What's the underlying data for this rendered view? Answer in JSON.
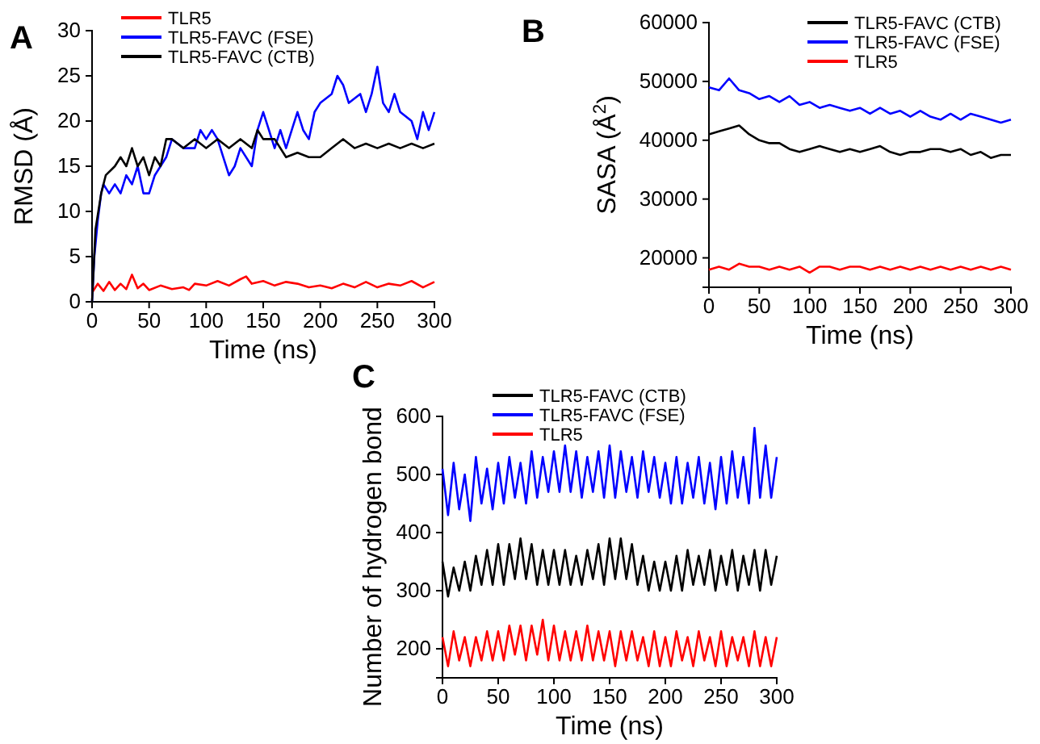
{
  "chart_data": [
    {
      "type": "line",
      "title": "A",
      "xlabel": "Time (ns)",
      "ylabel": "RMSD (Å)",
      "xlim": [
        0,
        300
      ],
      "xticks": [
        0,
        50,
        100,
        150,
        200,
        250,
        300
      ],
      "ylim": [
        0,
        30
      ],
      "yticks": [
        0,
        5,
        10,
        15,
        20,
        25,
        30
      ],
      "legend": "top",
      "grid": false,
      "series": [
        {
          "name": "TLR5",
          "color": "#ff0000",
          "x": [
            0,
            5,
            10,
            15,
            20,
            25,
            30,
            35,
            40,
            45,
            50,
            60,
            70,
            80,
            85,
            90,
            100,
            110,
            120,
            130,
            135,
            140,
            150,
            160,
            170,
            180,
            190,
            200,
            210,
            220,
            230,
            240,
            250,
            260,
            270,
            280,
            290,
            300
          ],
          "values": [
            1,
            2,
            1.2,
            2.2,
            1.3,
            2,
            1.4,
            3,
            1.5,
            2,
            1.3,
            1.8,
            1.4,
            1.6,
            1.3,
            2,
            1.8,
            2.3,
            1.8,
            2.5,
            2.8,
            2,
            2.3,
            1.8,
            2.2,
            2,
            1.6,
            1.8,
            1.5,
            2,
            1.6,
            2.2,
            1.6,
            2,
            1.8,
            2.3,
            1.6,
            2.2
          ]
        },
        {
          "name": "TLR5-FAVC (FSE)",
          "color": "#0000ff",
          "x": [
            0,
            2,
            5,
            8,
            10,
            15,
            20,
            25,
            30,
            35,
            40,
            45,
            50,
            55,
            60,
            65,
            70,
            80,
            90,
            95,
            100,
            105,
            110,
            115,
            120,
            125,
            130,
            140,
            145,
            150,
            155,
            160,
            165,
            170,
            175,
            180,
            185,
            190,
            195,
            200,
            210,
            215,
            220,
            225,
            235,
            240,
            245,
            250,
            255,
            260,
            265,
            270,
            280,
            285,
            290,
            295,
            300
          ],
          "values": [
            0,
            5,
            9,
            12,
            13,
            12,
            13,
            12,
            14,
            13,
            15,
            12,
            12,
            14,
            15,
            16,
            18,
            17,
            17,
            19,
            18,
            19,
            18,
            16,
            14,
            15,
            17,
            15,
            19,
            21,
            19,
            17,
            19,
            17,
            19,
            21,
            19,
            18,
            21,
            22,
            23,
            25,
            24,
            22,
            23,
            21,
            23,
            26,
            22,
            21,
            23,
            21,
            20,
            18,
            21,
            19,
            21
          ]
        },
        {
          "name": "TLR5-FAVC (CTB)",
          "color": "#000000",
          "x": [
            0,
            3,
            8,
            12,
            20,
            25,
            30,
            35,
            40,
            45,
            50,
            55,
            60,
            65,
            70,
            80,
            90,
            100,
            110,
            120,
            130,
            140,
            145,
            150,
            160,
            170,
            180,
            190,
            200,
            210,
            220,
            230,
            240,
            250,
            260,
            270,
            280,
            290,
            300
          ],
          "values": [
            0,
            8,
            12,
            14,
            15,
            16,
            15,
            17,
            15,
            16,
            14,
            16,
            15,
            18,
            18,
            17,
            18,
            17,
            18,
            17,
            18,
            17,
            19,
            18,
            18,
            16,
            16.5,
            16,
            16,
            17,
            18,
            17,
            17.5,
            17,
            17.5,
            17,
            17.5,
            17,
            17.5
          ]
        }
      ]
    },
    {
      "type": "line",
      "title": "B",
      "xlabel": "Time (ns)",
      "ylabel": "SASA (Å$^{2}$)",
      "xlim": [
        0,
        300
      ],
      "xticks": [
        0,
        50,
        100,
        150,
        200,
        250,
        300
      ],
      "ylim": [
        15000,
        60000
      ],
      "yticks": [
        20000,
        30000,
        40000,
        50000,
        60000
      ],
      "legend": "top right",
      "grid": false,
      "x": [
        0,
        10,
        20,
        30,
        40,
        50,
        60,
        70,
        80,
        90,
        100,
        110,
        120,
        130,
        140,
        150,
        160,
        170,
        180,
        190,
        200,
        210,
        220,
        230,
        240,
        250,
        260,
        270,
        280,
        290,
        300
      ],
      "series": [
        {
          "name": "TLR5-FAVC (CTB)",
          "color": "#000000",
          "values": [
            41000,
            41500,
            42000,
            42500,
            41000,
            40000,
            39500,
            39500,
            38500,
            38000,
            38500,
            39000,
            38500,
            38000,
            38500,
            38000,
            38500,
            39000,
            38000,
            37500,
            38000,
            38000,
            38500,
            38500,
            38000,
            38500,
            37500,
            38000,
            37000,
            37500,
            37500
          ]
        },
        {
          "name": "TLR5-FAVC (FSE)",
          "color": "#0000ff",
          "values": [
            49000,
            48500,
            50500,
            48500,
            48000,
            47000,
            47500,
            46500,
            47500,
            46000,
            46500,
            45500,
            46000,
            45500,
            45000,
            45500,
            44500,
            45500,
            44500,
            45000,
            44000,
            45000,
            44000,
            43500,
            44500,
            43500,
            44500,
            44000,
            43500,
            43000,
            43500
          ]
        },
        {
          "name": "TLR5",
          "color": "#ff0000",
          "values": [
            18000,
            18500,
            18000,
            19000,
            18500,
            18500,
            18000,
            18500,
            18000,
            18500,
            17500,
            18500,
            18500,
            18000,
            18500,
            18500,
            18000,
            18500,
            18000,
            18500,
            18000,
            18500,
            18000,
            18500,
            18000,
            18500,
            18000,
            18500,
            18000,
            18500,
            18000
          ]
        }
      ]
    },
    {
      "type": "line",
      "title": "C",
      "xlabel": "Time (ns)",
      "ylabel": "Number of hydrogen bond",
      "xlim": [
        0,
        300
      ],
      "xticks": [
        0,
        50,
        100,
        150,
        200,
        250,
        300
      ],
      "ylim": [
        150,
        600
      ],
      "yticks": [
        200,
        300,
        400,
        500,
        600
      ],
      "legend": "top",
      "grid": false,
      "x": [
        0,
        5,
        10,
        15,
        20,
        25,
        30,
        35,
        40,
        45,
        50,
        55,
        60,
        65,
        70,
        75,
        80,
        85,
        90,
        95,
        100,
        105,
        110,
        115,
        120,
        125,
        130,
        135,
        140,
        145,
        150,
        155,
        160,
        165,
        170,
        175,
        180,
        185,
        190,
        195,
        200,
        205,
        210,
        215,
        220,
        225,
        230,
        235,
        240,
        245,
        250,
        255,
        260,
        265,
        270,
        275,
        280,
        285,
        290,
        295,
        300
      ],
      "series": [
        {
          "name": "TLR5-FAVC (CTB)",
          "color": "#000000",
          "values": [
            350,
            290,
            340,
            300,
            350,
            300,
            360,
            310,
            370,
            310,
            380,
            310,
            380,
            320,
            390,
            320,
            380,
            310,
            370,
            310,
            370,
            310,
            370,
            310,
            360,
            310,
            370,
            320,
            380,
            310,
            390,
            320,
            390,
            320,
            380,
            310,
            360,
            300,
            350,
            300,
            350,
            300,
            360,
            300,
            370,
            310,
            360,
            310,
            370,
            300,
            360,
            310,
            370,
            300,
            360,
            310,
            370,
            300,
            370,
            310,
            360
          ]
        },
        {
          "name": "TLR5-FAVC (FSE)",
          "color": "#0000ff",
          "values": [
            510,
            430,
            520,
            440,
            500,
            420,
            530,
            450,
            510,
            440,
            520,
            450,
            530,
            460,
            520,
            450,
            540,
            460,
            530,
            470,
            540,
            470,
            550,
            470,
            540,
            460,
            530,
            470,
            540,
            460,
            550,
            460,
            540,
            470,
            530,
            460,
            540,
            470,
            530,
            460,
            520,
            450,
            530,
            450,
            520,
            460,
            530,
            450,
            520,
            440,
            530,
            450,
            540,
            460,
            530,
            450,
            580,
            460,
            550,
            460,
            530
          ]
        },
        {
          "name": "TLR5",
          "color": "#ff0000",
          "values": [
            220,
            170,
            230,
            180,
            220,
            170,
            220,
            180,
            230,
            180,
            230,
            180,
            240,
            190,
            240,
            180,
            240,
            190,
            250,
            180,
            240,
            180,
            230,
            180,
            230,
            180,
            240,
            180,
            230,
            180,
            230,
            170,
            230,
            180,
            230,
            180,
            220,
            170,
            230,
            170,
            220,
            170,
            230,
            180,
            220,
            170,
            230,
            180,
            220,
            170,
            230,
            170,
            220,
            180,
            220,
            170,
            230,
            170,
            220,
            170,
            220
          ]
        }
      ]
    }
  ]
}
